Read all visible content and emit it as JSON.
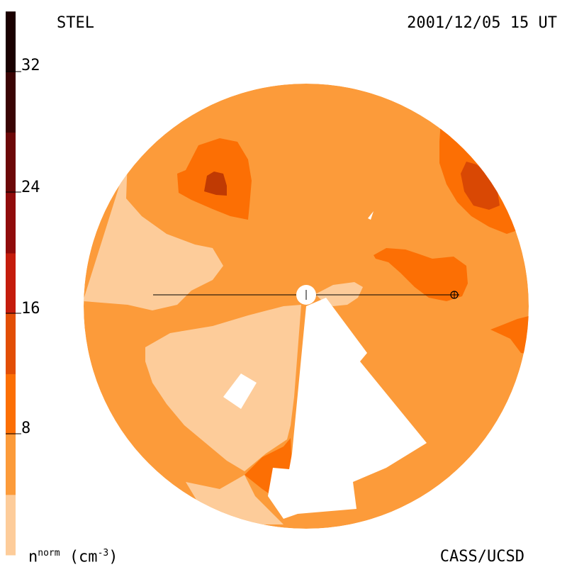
{
  "header": {
    "instrument": "STEL",
    "timestamp": "2001/12/05 15 UT"
  },
  "footer": {
    "credit": "CASS/UCSD",
    "unit_base": "n",
    "unit_sup": "norm",
    "unit_rest": "(cm",
    "unit_exp": "-3",
    "unit_close": ")"
  },
  "colorbar": {
    "ticks": [
      "32",
      "24",
      "16",
      "8"
    ],
    "colors": [
      "#fdcc9a",
      "#fc9b3a",
      "#fc6f04",
      "#e24e05",
      "#c41c0c",
      "#900b0b",
      "#6c0808",
      "#3a0404",
      "#1a0101"
    ]
  },
  "map": {
    "colors": {
      "background": "#fc9b3a",
      "low": "#fdcc9a",
      "mid": "#fc6f04",
      "high": "#d94804",
      "highest": "#c03a03"
    }
  }
}
